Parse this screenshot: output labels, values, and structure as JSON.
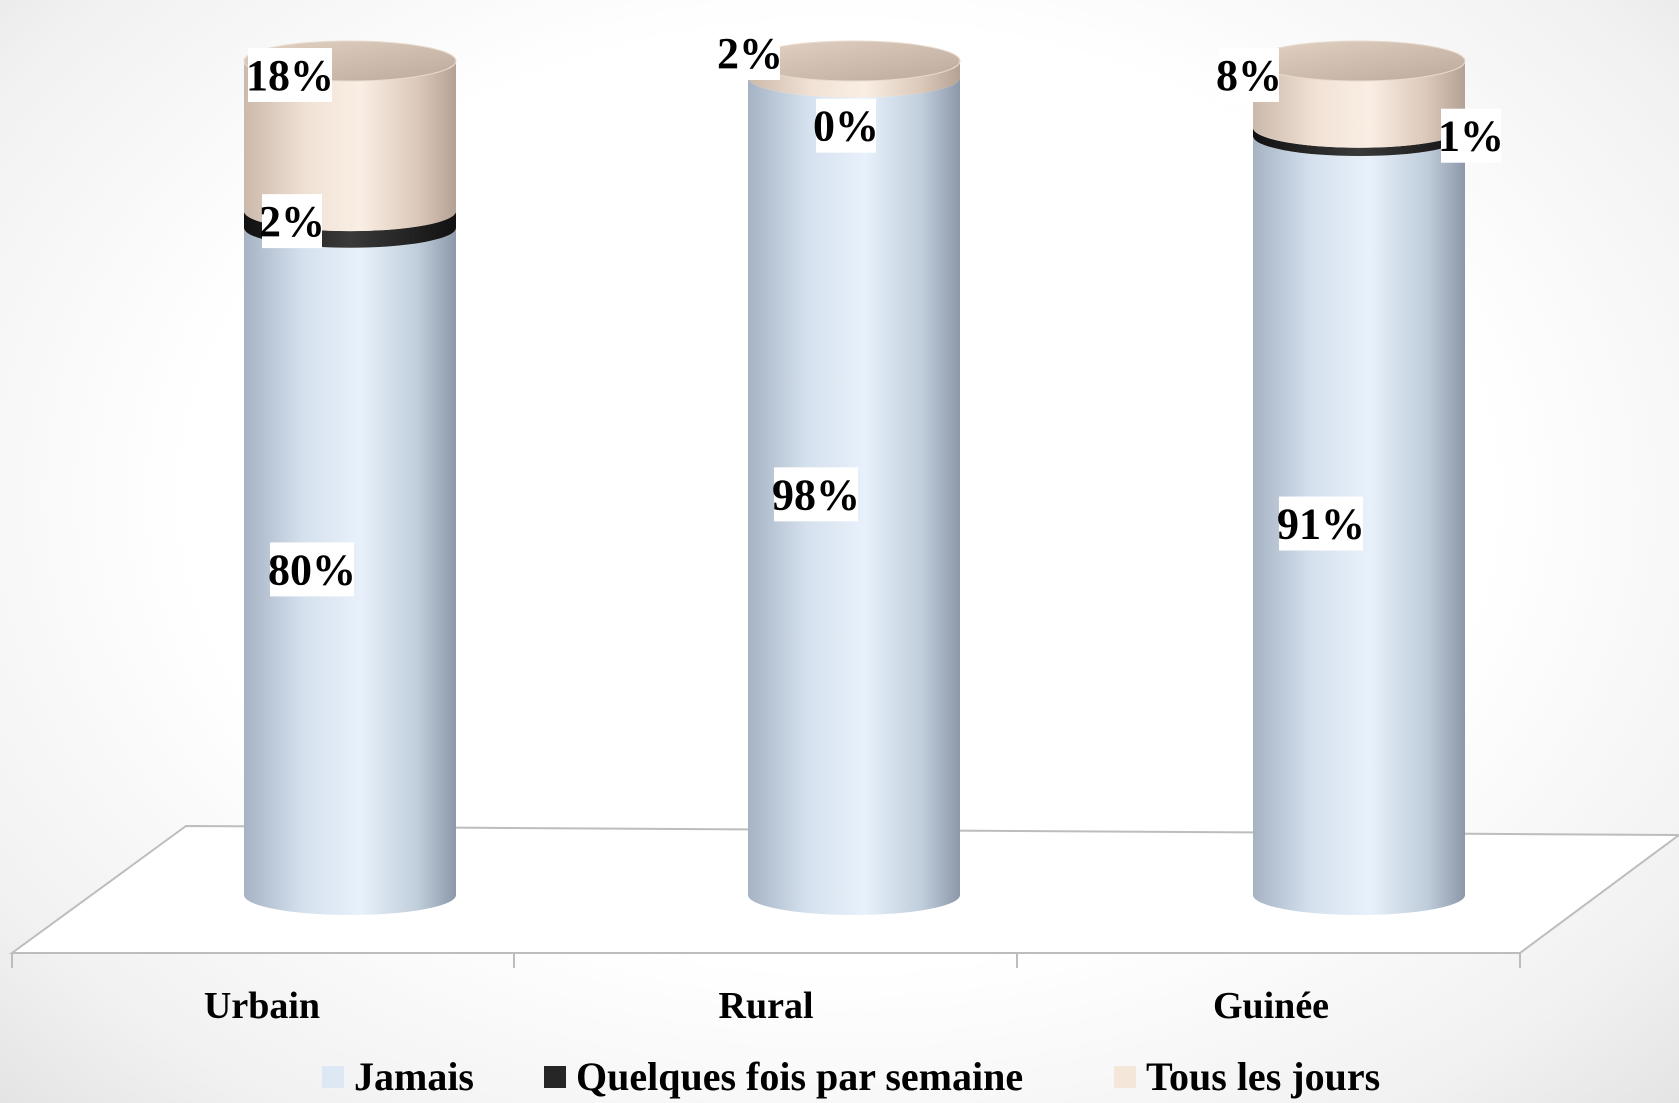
{
  "chart_data": {
    "type": "bar",
    "variant": "3d-stacked-cylinder-100-percent",
    "categories": [
      "Urbain",
      "Rural",
      "Guinée"
    ],
    "series": [
      {
        "name": "Jamais",
        "values": [
          80,
          98,
          91
        ],
        "labels": [
          "80%",
          "98%",
          "91%"
        ],
        "color": "#dde8f4"
      },
      {
        "name": "Quelques fois par semaine",
        "values": [
          2,
          0,
          1
        ],
        "labels": [
          "2%",
          "0%",
          "1%"
        ],
        "color": "#262626"
      },
      {
        "name": "Tous les jours",
        "values": [
          18,
          2,
          8
        ],
        "labels": [
          "18%",
          "2%",
          "8%"
        ],
        "color": "#f5e6da"
      }
    ],
    "ylim": [
      0,
      100
    ],
    "legend": "bottom",
    "grid": false
  }
}
